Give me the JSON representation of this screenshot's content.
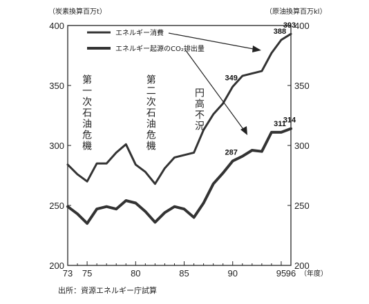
{
  "chart_data": {
    "type": "line",
    "left_unit": "（炭素換算百万t）",
    "right_unit": "（原油換算百万kl）",
    "left_ylim": [
      200,
      400
    ],
    "right_ylim": [
      200,
      400
    ],
    "y_ticks": [
      200,
      250,
      300,
      350,
      400
    ],
    "x_tick_labels": [
      "73",
      "75",
      "80",
      "85",
      "90",
      "95",
      "96"
    ],
    "x_unit": "（年度）",
    "x": [
      1973,
      1974,
      1975,
      1976,
      1977,
      1978,
      1979,
      1980,
      1981,
      1982,
      1983,
      1984,
      1985,
      1986,
      1987,
      1988,
      1989,
      1990,
      1991,
      1992,
      1993,
      1994,
      1995,
      1996
    ],
    "series": [
      {
        "name": "エネルギー消費",
        "axis": "right",
        "color": "#333333",
        "width": 3,
        "values": [
          284,
          276,
          270,
          285,
          285,
          294,
          301,
          284,
          278,
          268,
          281,
          290,
          292,
          294,
          313,
          326,
          335,
          349,
          358,
          360,
          362,
          377,
          388,
          393
        ],
        "point_labels": [
          {
            "x": 1990,
            "text": "349"
          },
          {
            "x": 1995,
            "text": "388"
          },
          {
            "x": 1996,
            "text": "393"
          }
        ]
      },
      {
        "name": "エネルギー起源のCO₂排出量",
        "axis": "left",
        "color": "#333333",
        "width": 4,
        "values": [
          249,
          243,
          235,
          247,
          249,
          247,
          254,
          252,
          245,
          236,
          244,
          249,
          247,
          240,
          252,
          268,
          277,
          287,
          291,
          296,
          295,
          311,
          311,
          314
        ],
        "point_labels": [
          {
            "x": 1990,
            "text": "287"
          },
          {
            "x": 1995,
            "text": "311"
          },
          {
            "x": 1996,
            "text": "314"
          }
        ]
      }
    ],
    "annotations": [
      {
        "text": "第一次石油危機",
        "x": 1975.0,
        "y": 352
      },
      {
        "text": "第二次石油危機",
        "x": 1981.6,
        "y": 352
      },
      {
        "text": "円高不況",
        "x": 1986.6,
        "y": 341
      }
    ],
    "source_note": "出所：資源エネルギー庁試算"
  }
}
